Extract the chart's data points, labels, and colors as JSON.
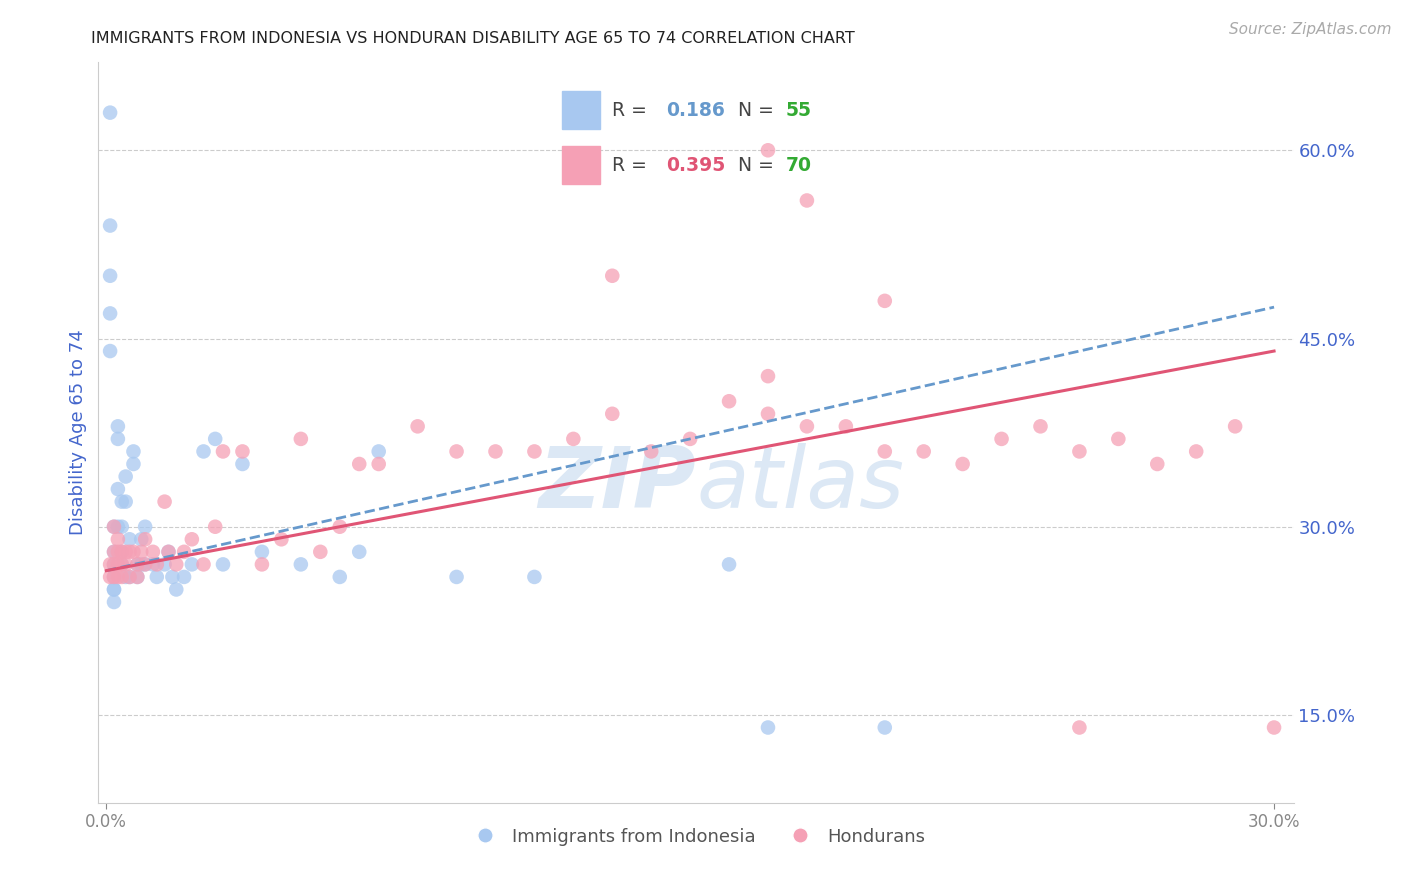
{
  "title": "IMMIGRANTS FROM INDONESIA VS HONDURAN DISABILITY AGE 65 TO 74 CORRELATION CHART",
  "source_text": "Source: ZipAtlas.com",
  "ylabel": "Disability Age 65 to 74",
  "r_indonesia": 0.186,
  "n_indonesia": 55,
  "r_honduran": 0.395,
  "n_honduran": 70,
  "xlim": [
    -0.002,
    0.305
  ],
  "ylim": [
    0.08,
    0.67
  ],
  "xtick_positions": [
    0.0,
    0.3
  ],
  "xtick_labels": [
    "0.0%",
    "30.0%"
  ],
  "yticks_right": [
    0.15,
    0.3,
    0.45,
    0.6
  ],
  "color_indonesia": "#a8c8f0",
  "color_honduran": "#f5a0b5",
  "line_color_indonesia": "#6699cc",
  "line_color_honduran": "#e05575",
  "background_color": "#ffffff",
  "grid_color": "#cccccc",
  "title_color": "#222222",
  "axis_label_color": "#4466cc",
  "watermark_color": "#dce8f5",
  "legend_box_color": "#cccccc",
  "indonesia_x": [
    0.001,
    0.001,
    0.001,
    0.001,
    0.001,
    0.002,
    0.002,
    0.002,
    0.002,
    0.002,
    0.002,
    0.002,
    0.003,
    0.003,
    0.003,
    0.003,
    0.004,
    0.004,
    0.004,
    0.004,
    0.005,
    0.005,
    0.005,
    0.006,
    0.006,
    0.007,
    0.007,
    0.008,
    0.008,
    0.009,
    0.009,
    0.01,
    0.01,
    0.012,
    0.013,
    0.015,
    0.016,
    0.017,
    0.018,
    0.02,
    0.022,
    0.025,
    0.028,
    0.03,
    0.035,
    0.04,
    0.05,
    0.06,
    0.065,
    0.07,
    0.09,
    0.11,
    0.16,
    0.17,
    0.2
  ],
  "indonesia_y": [
    0.63,
    0.54,
    0.5,
    0.47,
    0.44,
    0.3,
    0.28,
    0.27,
    0.26,
    0.25,
    0.25,
    0.24,
    0.38,
    0.37,
    0.33,
    0.3,
    0.32,
    0.3,
    0.28,
    0.27,
    0.34,
    0.32,
    0.26,
    0.29,
    0.26,
    0.36,
    0.35,
    0.27,
    0.26,
    0.29,
    0.27,
    0.3,
    0.27,
    0.27,
    0.26,
    0.27,
    0.28,
    0.26,
    0.25,
    0.26,
    0.27,
    0.36,
    0.37,
    0.27,
    0.35,
    0.28,
    0.27,
    0.26,
    0.28,
    0.36,
    0.26,
    0.26,
    0.27,
    0.14,
    0.14
  ],
  "honduran_x": [
    0.001,
    0.001,
    0.002,
    0.002,
    0.002,
    0.002,
    0.003,
    0.003,
    0.003,
    0.003,
    0.004,
    0.004,
    0.004,
    0.005,
    0.005,
    0.006,
    0.006,
    0.007,
    0.008,
    0.008,
    0.009,
    0.01,
    0.01,
    0.012,
    0.013,
    0.015,
    0.016,
    0.018,
    0.02,
    0.022,
    0.025,
    0.028,
    0.03,
    0.035,
    0.04,
    0.045,
    0.05,
    0.055,
    0.06,
    0.065,
    0.07,
    0.08,
    0.09,
    0.1,
    0.11,
    0.12,
    0.13,
    0.14,
    0.15,
    0.16,
    0.17,
    0.18,
    0.19,
    0.2,
    0.21,
    0.22,
    0.23,
    0.24,
    0.25,
    0.26,
    0.27,
    0.28,
    0.29,
    0.13,
    0.17,
    0.18,
    0.2,
    0.25,
    0.17,
    0.3
  ],
  "honduran_y": [
    0.27,
    0.26,
    0.3,
    0.28,
    0.27,
    0.26,
    0.29,
    0.28,
    0.27,
    0.26,
    0.28,
    0.27,
    0.26,
    0.28,
    0.27,
    0.28,
    0.26,
    0.28,
    0.27,
    0.26,
    0.28,
    0.29,
    0.27,
    0.28,
    0.27,
    0.32,
    0.28,
    0.27,
    0.28,
    0.29,
    0.27,
    0.3,
    0.36,
    0.36,
    0.27,
    0.29,
    0.37,
    0.28,
    0.3,
    0.35,
    0.35,
    0.38,
    0.36,
    0.36,
    0.36,
    0.37,
    0.39,
    0.36,
    0.37,
    0.4,
    0.39,
    0.38,
    0.38,
    0.36,
    0.36,
    0.35,
    0.37,
    0.38,
    0.36,
    0.37,
    0.35,
    0.36,
    0.38,
    0.5,
    0.6,
    0.56,
    0.48,
    0.14,
    0.42,
    0.14
  ]
}
